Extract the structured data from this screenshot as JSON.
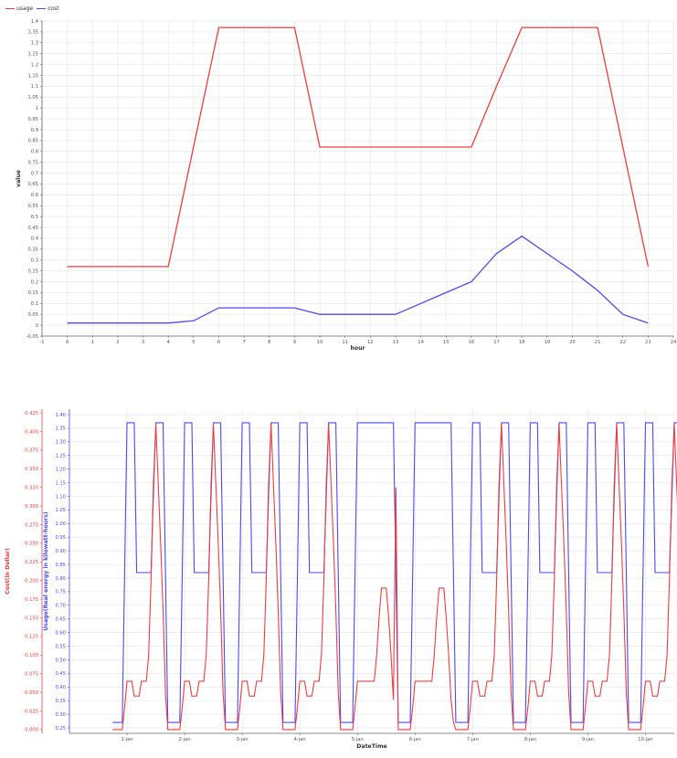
{
  "colors": {
    "usage": "#f03c3c",
    "cost": "#4a4af2",
    "grid": "#e8e8e8",
    "axis": "#666666"
  },
  "chart_data": [
    {
      "type": "line",
      "title": "",
      "xlabel": "hour",
      "ylabel": "value",
      "grid": true,
      "legend": "top-left",
      "xlim": [
        -1,
        24
      ],
      "ylim": [
        -0.05,
        1.4
      ],
      "x_ticks": [
        -1,
        0,
        1,
        2,
        3,
        4,
        5,
        6,
        7,
        8,
        9,
        10,
        11,
        12,
        13,
        14,
        15,
        16,
        17,
        18,
        19,
        20,
        21,
        22,
        23,
        24
      ],
      "y_ticks": [
        -0.05,
        0,
        0.05,
        0.1,
        0.15,
        0.2,
        0.25,
        0.3,
        0.35,
        0.4,
        0.45,
        0.5,
        0.55,
        0.6,
        0.65,
        0.7,
        0.75,
        0.8,
        0.85,
        0.9,
        0.95,
        1,
        1.05,
        1.1,
        1.15,
        1.2,
        1.25,
        1.3,
        1.35,
        1.4
      ],
      "x": [
        0,
        1,
        2,
        3,
        4,
        5,
        6,
        7,
        8,
        9,
        10,
        11,
        12,
        13,
        14,
        15,
        16,
        17,
        18,
        19,
        20,
        21,
        22,
        23
      ],
      "series": [
        {
          "name": "usage",
          "values": [
            0.27,
            0.27,
            0.27,
            0.27,
            0.27,
            0.82,
            1.37,
            1.37,
            1.37,
            1.37,
            0.82,
            0.82,
            0.82,
            0.82,
            0.82,
            0.82,
            0.82,
            1.1,
            1.37,
            1.37,
            1.37,
            1.37,
            0.82,
            0.27
          ]
        },
        {
          "name": "cost",
          "values": [
            0.01,
            0.01,
            0.01,
            0.01,
            0.01,
            0.02,
            0.08,
            0.08,
            0.08,
            0.08,
            0.05,
            0.05,
            0.05,
            0.05,
            0.1,
            0.15,
            0.2,
            0.33,
            0.41,
            0.33,
            0.25,
            0.16,
            0.05,
            0.01
          ]
        }
      ]
    },
    {
      "type": "line",
      "title": "",
      "xlabel": "DateTime",
      "ylabel_left": "Cost(in Dollar)",
      "ylabel_right": "Usage(Real energy in kilowatt-hours)",
      "grid": true,
      "xlim": [
        0,
        10.5
      ],
      "x_ticks": [
        1,
        2,
        3,
        4,
        5,
        6,
        7,
        8,
        9,
        10
      ],
      "x_tick_labels": [
        "1-jan",
        "2-jan",
        "3-jan",
        "4-jan",
        "5-jan",
        "6-jan",
        "7-jan",
        "8-jan",
        "9-jan",
        "10-jan"
      ],
      "cost_ylim": [
        -0.005,
        0.43
      ],
      "cost_ticks": [
        0,
        0.025,
        0.05,
        0.075,
        0.1,
        0.125,
        0.15,
        0.175,
        0.2,
        0.225,
        0.25,
        0.275,
        0.3,
        0.325,
        0.35,
        0.375,
        0.4,
        0.425
      ],
      "usage_ylim": [
        0.23,
        1.42
      ],
      "usage_ticks": [
        0.25,
        0.3,
        0.35,
        0.4,
        0.45,
        0.5,
        0.55,
        0.6,
        0.65,
        0.7,
        0.75,
        0.8,
        0.85,
        0.9,
        0.95,
        1,
        1.05,
        1.1,
        1.15,
        1.2,
        1.25,
        1.3,
        1.35,
        1.4
      ],
      "day_start": 0.75,
      "hourly_usage_weekday": [
        0.27,
        0.27,
        0.27,
        0.27,
        0.27,
        0.82,
        1.37,
        1.37,
        1.37,
        1.37,
        0.82,
        0.82,
        0.82,
        0.82,
        0.82,
        0.82,
        0.82,
        1.1,
        1.37,
        1.37,
        1.37,
        1.37,
        0.82,
        0.27
      ],
      "hourly_usage_weekend": [
        0.27,
        0.27,
        0.27,
        0.27,
        0.27,
        0.82,
        1.37,
        1.37,
        1.37,
        1.37,
        1.37,
        1.37,
        1.37,
        1.37,
        1.37,
        1.37,
        1.37,
        1.37,
        1.37,
        1.37,
        1.37,
        1.37,
        0.82,
        0.27
      ],
      "hourly_cost_weekday": [
        0.0,
        0.0,
        0.0,
        0.0,
        0.0,
        0.03,
        0.065,
        0.065,
        0.065,
        0.045,
        0.045,
        0.045,
        0.065,
        0.065,
        0.065,
        0.1,
        0.2,
        0.33,
        0.41,
        0.33,
        0.25,
        0.16,
        0.05,
        0.0
      ],
      "hourly_cost_weekend": [
        0.0,
        0.0,
        0.0,
        0.0,
        0.0,
        0.03,
        0.065,
        0.065,
        0.065,
        0.065,
        0.065,
        0.065,
        0.065,
        0.065,
        0.1,
        0.15,
        0.19,
        0.19,
        0.19,
        0.15,
        0.1,
        0.04,
        0.01,
        0.0
      ],
      "weekend_days": [
        4,
        5
      ],
      "spike_day": 5,
      "spike_value": 0.325,
      "series": [
        {
          "name": "usage",
          "axis": "right"
        },
        {
          "name": "cost",
          "axis": "left"
        }
      ]
    }
  ]
}
